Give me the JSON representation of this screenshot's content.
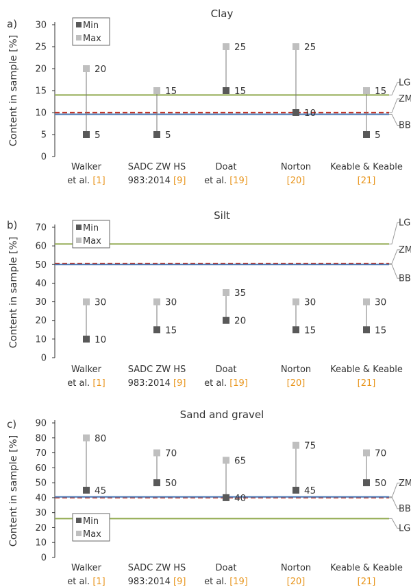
{
  "chart_data": [
    {
      "type": "scatter",
      "panel": "a)",
      "title": "Clay",
      "ylabel": "Content in sample [%]",
      "ylim": [
        0,
        30
      ],
      "yticks": [
        0,
        5,
        10,
        15,
        20,
        25,
        30
      ],
      "categories": [
        {
          "line1": "Walker",
          "line2a": "et al. ",
          "ref": "[1]"
        },
        {
          "line1": "SADC ZW HS",
          "line2a": "983:2014 ",
          "ref": "[9]"
        },
        {
          "line1": "Doat",
          "line2a": "et al. ",
          "ref": "[19]"
        },
        {
          "line1": "Norton",
          "line2a": "",
          "ref": "[20]"
        },
        {
          "line1": "Keable & Keable",
          "line2a": "",
          "ref": "[21]"
        }
      ],
      "series": [
        {
          "name": "Min",
          "values": [
            5,
            5,
            15,
            10,
            5
          ]
        },
        {
          "name": "Max",
          "values": [
            20,
            15,
            25,
            25,
            15
          ]
        }
      ],
      "value_labels": {
        "min": [
          "5",
          "5",
          "15",
          "10",
          "5"
        ],
        "max": [
          "20",
          "15",
          "25",
          "25",
          "15"
        ]
      },
      "reference_lines": [
        {
          "name": "LG",
          "value": 14,
          "color": "#8fa94d",
          "style": "solid"
        },
        {
          "name": "ZM",
          "value": 10,
          "color": "#c0392b",
          "style": "dashed"
        },
        {
          "name": "BB",
          "value": 9.6,
          "color": "#4a78b5",
          "style": "solid"
        }
      ],
      "legend": {
        "position": "top-left",
        "entries": [
          "Min",
          "Max"
        ]
      }
    },
    {
      "type": "scatter",
      "panel": "b)",
      "title": "Silt",
      "ylabel": "Content in sample [%]",
      "ylim": [
        0,
        70
      ],
      "yticks": [
        0,
        10,
        20,
        30,
        40,
        50,
        60,
        70
      ],
      "categories": [
        {
          "line1": "Walker",
          "line2a": "et al. ",
          "ref": "[1]"
        },
        {
          "line1": "SADC ZW HS",
          "line2a": "983:2014 ",
          "ref": "[9]"
        },
        {
          "line1": "Doat",
          "line2a": "et al. ",
          "ref": "[19]"
        },
        {
          "line1": "Norton",
          "line2a": "",
          "ref": "[20]"
        },
        {
          "line1": "Keable & Keable",
          "line2a": "",
          "ref": "[21]"
        }
      ],
      "series": [
        {
          "name": "Min",
          "values": [
            10,
            15,
            20,
            15,
            15
          ]
        },
        {
          "name": "Max",
          "values": [
            30,
            30,
            35,
            30,
            30
          ]
        }
      ],
      "value_labels": {
        "min": [
          "10",
          "15",
          "20",
          "15",
          "15"
        ],
        "max": [
          "30",
          "30",
          "35",
          "30",
          "30"
        ]
      },
      "reference_lines": [
        {
          "name": "LG",
          "value": 61,
          "color": "#8fa94d",
          "style": "solid"
        },
        {
          "name": "ZM",
          "value": 50.5,
          "color": "#c0392b",
          "style": "dashed"
        },
        {
          "name": "BB",
          "value": 50,
          "color": "#4a78b5",
          "style": "solid"
        }
      ],
      "legend": {
        "position": "top-left",
        "entries": [
          "Min",
          "Max"
        ]
      }
    },
    {
      "type": "scatter",
      "panel": "c)",
      "title": "Sand and gravel",
      "ylabel": "Content in sample [%]",
      "ylim": [
        0,
        90
      ],
      "yticks": [
        0,
        10,
        20,
        30,
        40,
        50,
        60,
        70,
        80,
        90
      ],
      "categories": [
        {
          "line1": "Walker",
          "line2a": "et al. ",
          "ref": "[1]"
        },
        {
          "line1": "SADC ZW HS",
          "line2a": "983:2014 ",
          "ref": "[9]"
        },
        {
          "line1": "Doat",
          "line2a": "et al. ",
          "ref": "[19]"
        },
        {
          "line1": "Norton",
          "line2a": "",
          "ref": "[20]"
        },
        {
          "line1": "Keable & Keable",
          "line2a": "",
          "ref": "[21]"
        }
      ],
      "series": [
        {
          "name": "Min",
          "values": [
            45,
            50,
            40,
            45,
            50
          ]
        },
        {
          "name": "Max",
          "values": [
            80,
            70,
            65,
            75,
            70
          ]
        }
      ],
      "value_labels": {
        "min": [
          "45",
          "50",
          "40",
          "45",
          "50"
        ],
        "max": [
          "80",
          "70",
          "65",
          "75",
          "70"
        ]
      },
      "reference_lines": [
        {
          "name": "ZM",
          "value": 40,
          "color": "#c0392b",
          "style": "dashed"
        },
        {
          "name": "BB",
          "value": 40.5,
          "color": "#4a78b5",
          "style": "solid"
        },
        {
          "name": "LG",
          "value": 26,
          "color": "#8fa94d",
          "style": "solid"
        }
      ],
      "legend": {
        "position": "bottom-left",
        "entries": [
          "Min",
          "Max"
        ]
      }
    }
  ],
  "colors": {
    "min_marker": "#595959",
    "max_marker": "#bfbfbf",
    "stem": "#777777",
    "axis": "#333333",
    "reference": "#e8941a"
  }
}
